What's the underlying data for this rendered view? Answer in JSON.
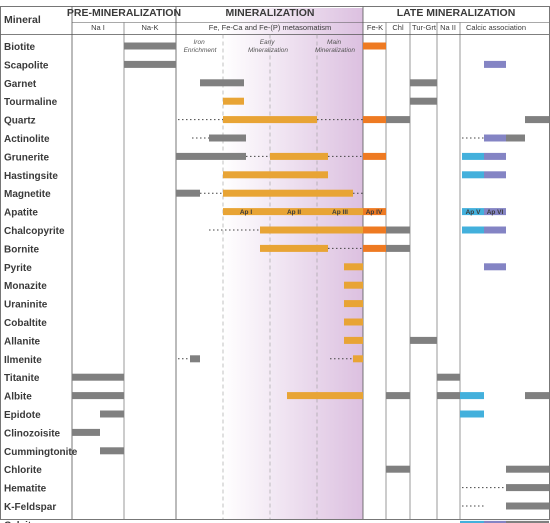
{
  "chart_data": {
    "type": "table",
    "mineral_header": "Mineral",
    "groups": [
      {
        "label": "PRE-MINERALIZATION",
        "col_start": 0,
        "col_end": 1
      },
      {
        "label": "MINERALIZATION",
        "col_start": 2,
        "col_end": 2
      },
      {
        "label": "LATE MINERALIZATION",
        "col_start": 3,
        "col_end": 7
      }
    ],
    "columns": [
      {
        "label": "Na I"
      },
      {
        "label": "Na-K"
      },
      {
        "label": "Fe, Fe-Ca and Fe-(P) metasomatism"
      },
      {
        "label": "Fe-K"
      },
      {
        "label": "Chl"
      },
      {
        "label": "Tur-Grt"
      },
      {
        "label": "Na II"
      },
      {
        "label": "Calcic association"
      }
    ],
    "sub_stages": [
      "Iron Enrichment",
      "Early Mineralization",
      "Main Mineralization"
    ],
    "minerals": [
      "Biotite",
      "Scapolite",
      "Garnet",
      "Tourmaline",
      "Quartz",
      "Actinolite",
      "Grunerite",
      "Hastingsite",
      "Magnetite",
      "Apatite",
      "Chalcopyrite",
      "Bornite",
      "Pyrite",
      "Monazite",
      "Uraninite",
      "Cobaltite",
      "Allanite",
      "Ilmenite",
      "Titanite",
      "Albite",
      "Epidote",
      "Clinozoisite",
      "Cummingtonite",
      "Chlorite",
      "Hematite",
      "K-Feldspar",
      "Calcite"
    ],
    "apatite_generations": [
      "Ap I",
      "Ap II",
      "Ap III",
      "Ap IV",
      "Ap V",
      "Ap VI"
    ],
    "colors": {
      "pre_mineralization": "#808080",
      "mineralization": "#e8a435",
      "fe_k": "#ee7a22",
      "late": "#808080",
      "calcic_blue": "#43b0dc",
      "calcic_purple": "#8484c4",
      "metasomatism_band_start": "#ffffff",
      "metasomatism_band_end": "#dcc0e0"
    }
  }
}
